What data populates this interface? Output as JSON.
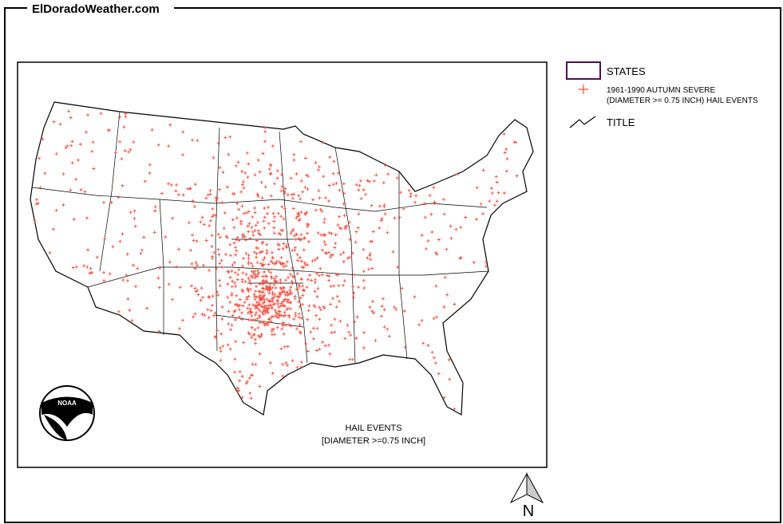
{
  "header": {
    "site": "ElDoradoWeather.com"
  },
  "legend": {
    "items": [
      {
        "label": "STATES"
      },
      {
        "label": [
          "1961-1990 AUTUMN SEVERE",
          "(DIAMETER >= 0.75 INCH) HAIL EVENTS"
        ]
      },
      {
        "label": "TITLE"
      }
    ]
  },
  "map": {
    "title": [
      "HAIL EVENTS",
      "[DIAMETER >=0.75 INCH]"
    ],
    "logo": "NOAA",
    "north": "N"
  }
}
